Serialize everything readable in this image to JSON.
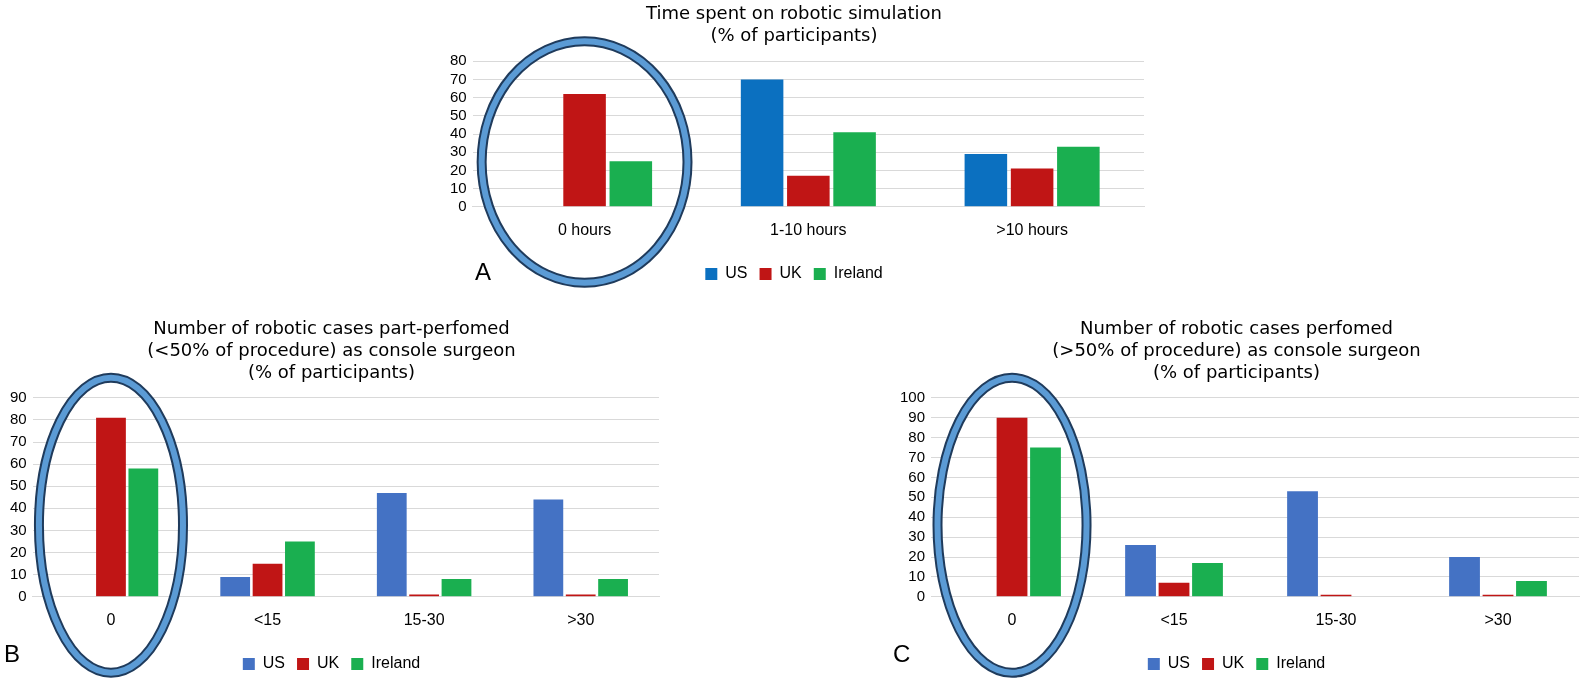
{
  "chart_data": [
    {
      "type": "bar",
      "title": "Time spent on robotic simulation\n(% of participants)",
      "categories": [
        "0 hours",
        "1-10 hours",
        ">10 hours"
      ],
      "series": [
        {
          "name": "US",
          "color": "#0b70c0",
          "values": [
            0,
            70,
            29
          ]
        },
        {
          "name": "UK",
          "color": "#c01515",
          "values": [
            62,
            17,
            21
          ]
        },
        {
          "name": "Ireland",
          "color": "#1aaf50",
          "values": [
            25,
            41,
            33
          ]
        }
      ],
      "ylim": [
        0,
        80
      ],
      "yticks": [
        0,
        10,
        20,
        30,
        40,
        50,
        60,
        70,
        80
      ],
      "grid": "y",
      "legend": "bottom",
      "annotations": [
        "A"
      ]
    },
    {
      "type": "bar",
      "title": "Number of robotic cases part-perfomed\n(<50% of procedure) as console surgeon\n(% of participants)",
      "categories": [
        "0",
        "<15",
        "15-30",
        ">30"
      ],
      "series": [
        {
          "name": "US",
          "color": "#4472c4",
          "values": [
            0,
            9,
            47,
            44
          ]
        },
        {
          "name": "UK",
          "color": "#c01515",
          "values": [
            81,
            15,
            1,
            1
          ]
        },
        {
          "name": "Ireland",
          "color": "#1aaf50",
          "values": [
            58,
            25,
            8,
            8
          ]
        }
      ],
      "ylim": [
        0,
        90
      ],
      "yticks": [
        0,
        10,
        20,
        30,
        40,
        50,
        60,
        70,
        80,
        90
      ],
      "grid": "y",
      "legend": "bottom",
      "annotations": [
        "B"
      ]
    },
    {
      "type": "bar",
      "title": "Number of robotic cases perfomed\n(>50% of procedure) as console surgeon\n(% of participants)",
      "categories": [
        "0",
        "<15",
        "15-30",
        ">30"
      ],
      "series": [
        {
          "name": "US",
          "color": "#4472c4",
          "values": [
            0,
            26,
            53,
            20
          ]
        },
        {
          "name": "UK",
          "color": "#c01515",
          "values": [
            90,
            7,
            1,
            1
          ]
        },
        {
          "name": "Ireland",
          "color": "#1aaf50",
          "values": [
            75,
            17,
            0,
            8
          ]
        }
      ],
      "ylim": [
        0,
        100
      ],
      "yticks": [
        0,
        10,
        20,
        30,
        40,
        50,
        60,
        70,
        80,
        90,
        100
      ],
      "grid": "y",
      "legend": "bottom",
      "annotations": [
        "C"
      ]
    }
  ]
}
